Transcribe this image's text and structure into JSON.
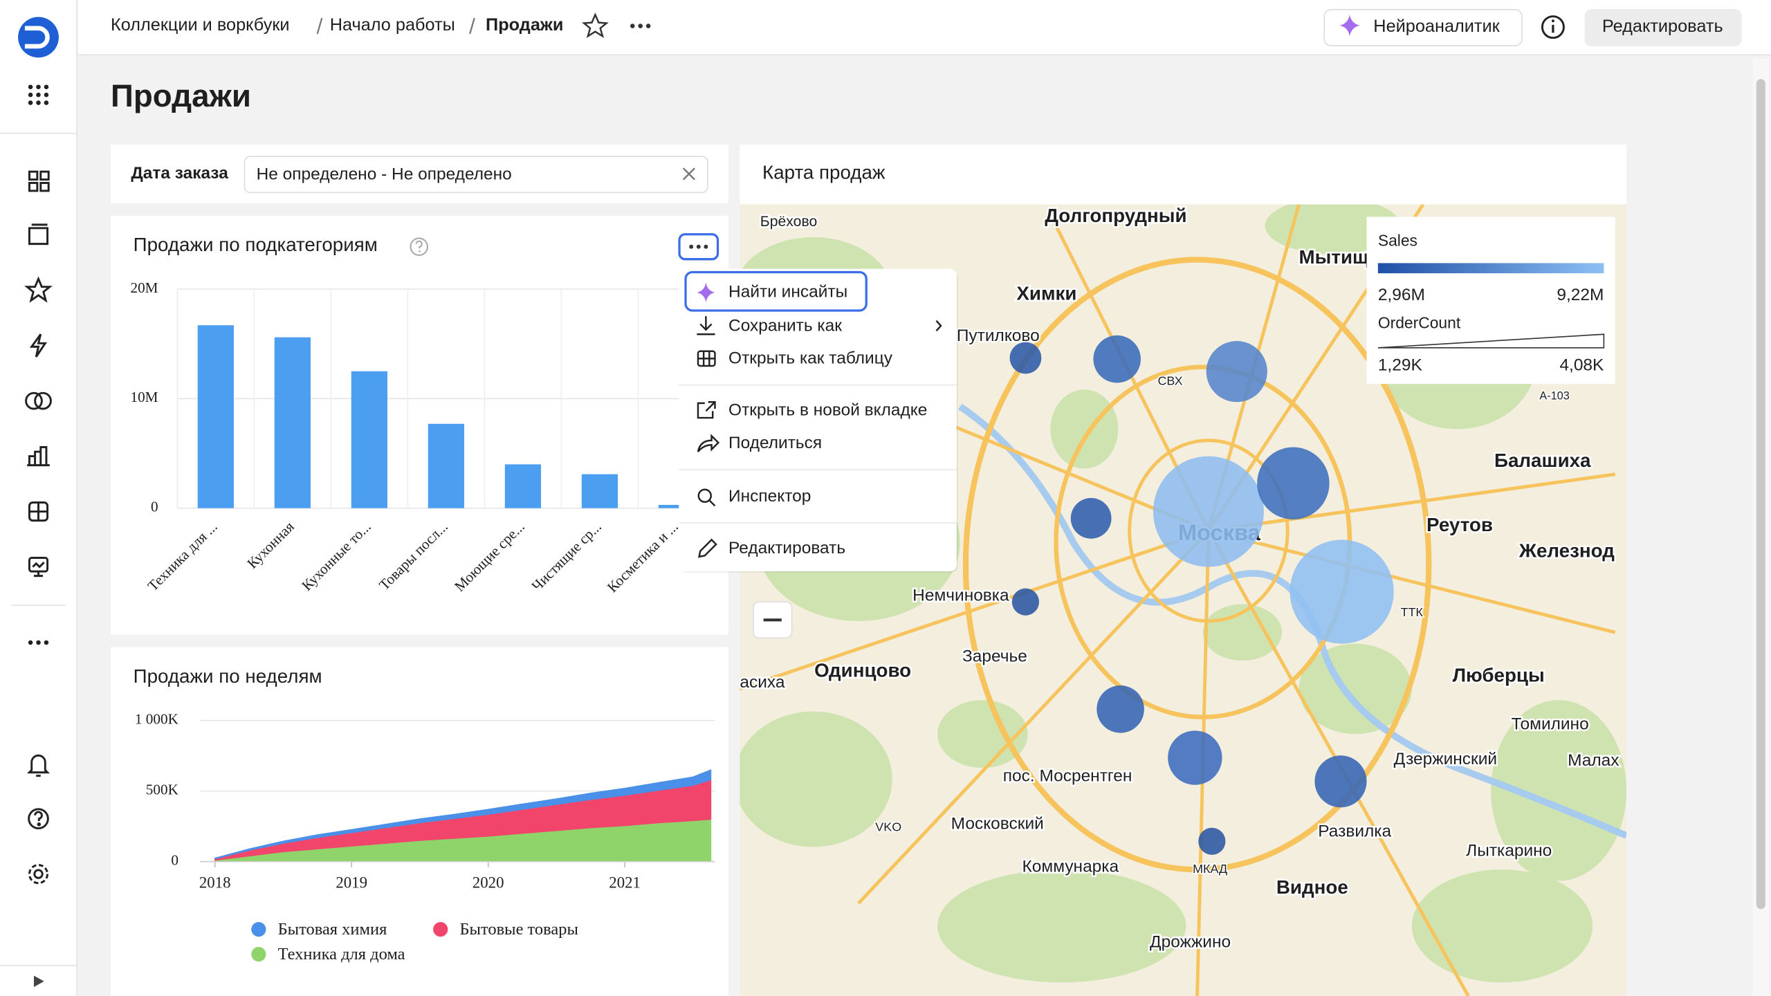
{
  "header": {
    "breadcrumbs": [
      "Коллекции и воркбуки",
      "Начало работы",
      "Продажи"
    ],
    "neuro_button": "Нейроаналитик",
    "edit_button": "Редактировать"
  },
  "title": "Продажи",
  "filter": {
    "label": "Дата заказа",
    "value": "Не определено - Не определено"
  },
  "chart_data": [
    {
      "type": "bar",
      "title": "Продажи по подкатегориям",
      "categories": [
        "Техника для ...",
        "Кухонная",
        "Кухонные то...",
        "Товары посл...",
        "Моющие сре...",
        "Чистящие ср...",
        "Косметика и ..."
      ],
      "values": [
        16700000,
        15600000,
        12500000,
        7700000,
        4000000,
        3100000,
        300000
      ],
      "color": "#4c9ef0",
      "ylim": [
        0,
        20000000
      ],
      "yticks": [
        0,
        {
          "value": 10000000,
          "label": "10M"
        },
        {
          "value": 20000000,
          "label": "20M"
        }
      ],
      "grid": true
    },
    {
      "type": "area",
      "title": "Продажи по неделям",
      "stacked": true,
      "x": [
        2018.0,
        2018.25,
        2018.5,
        2018.75,
        2019.0,
        2019.25,
        2019.5,
        2019.75,
        2020.0,
        2020.25,
        2020.5,
        2020.75,
        2021.0,
        2021.25,
        2021.5,
        2021.63
      ],
      "series": [
        {
          "name": "Техника для дома",
          "color": "#8fd46a",
          "values": [
            10000,
            40000,
            70000,
            90000,
            110000,
            130000,
            150000,
            165000,
            180000,
            200000,
            220000,
            240000,
            255000,
            275000,
            290000,
            300000
          ]
        },
        {
          "name": "Бытовые товары",
          "color": "#f2456b",
          "values": [
            10000,
            40000,
            60000,
            80000,
            95000,
            110000,
            125000,
            140000,
            155000,
            170000,
            185000,
            200000,
            215000,
            230000,
            250000,
            280000
          ]
        },
        {
          "name": "Бытовая химия",
          "color": "#4a90e8",
          "values": [
            5000,
            10000,
            15000,
            20000,
            22000,
            25000,
            28000,
            30000,
            35000,
            38000,
            40000,
            45000,
            50000,
            55000,
            60000,
            70000
          ]
        }
      ],
      "xlim": [
        2017.89,
        2021.66
      ],
      "xticks": [
        2018,
        2019,
        2020,
        2021
      ],
      "ylim": [
        0,
        1000000
      ],
      "yticks": [
        0,
        {
          "value": 500000,
          "label": "500K"
        },
        {
          "value": 1000000,
          "label": "1 000K"
        }
      ],
      "grid": true
    }
  ],
  "menu": {
    "items": [
      "Найти инсайты",
      "Сохранить как",
      "Открыть как таблицу",
      "Открыть в новой вкладке",
      "Поделиться",
      "Инспектор",
      "Редактировать"
    ]
  },
  "map": {
    "title": "Карта продаж",
    "legend": {
      "color_title": "Sales",
      "color_min": "2,96M",
      "color_max": "9,22M",
      "size_title": "OrderCount",
      "size_min": "1,29K",
      "size_max": "4,08K"
    },
    "labels": [
      "Брёхово",
      "Долгопрудный",
      "Мытищ",
      "Химки",
      "Путилково",
      "Москва",
      "Балашиха",
      "Реутов",
      "Железнод",
      "Немчиновка",
      "Заречье",
      "Одинцово",
      "асиха",
      "Люберцы",
      "Томилино",
      "Дзержинский",
      "Малах",
      "пос. Мосрентген",
      "Московский",
      "Коммунарка",
      "Развилка",
      "Лыткарино",
      "Видное",
      "Дрожжино",
      "МКАД",
      "СВХ",
      "ТТК",
      "A-103",
      "VKO"
    ]
  }
}
